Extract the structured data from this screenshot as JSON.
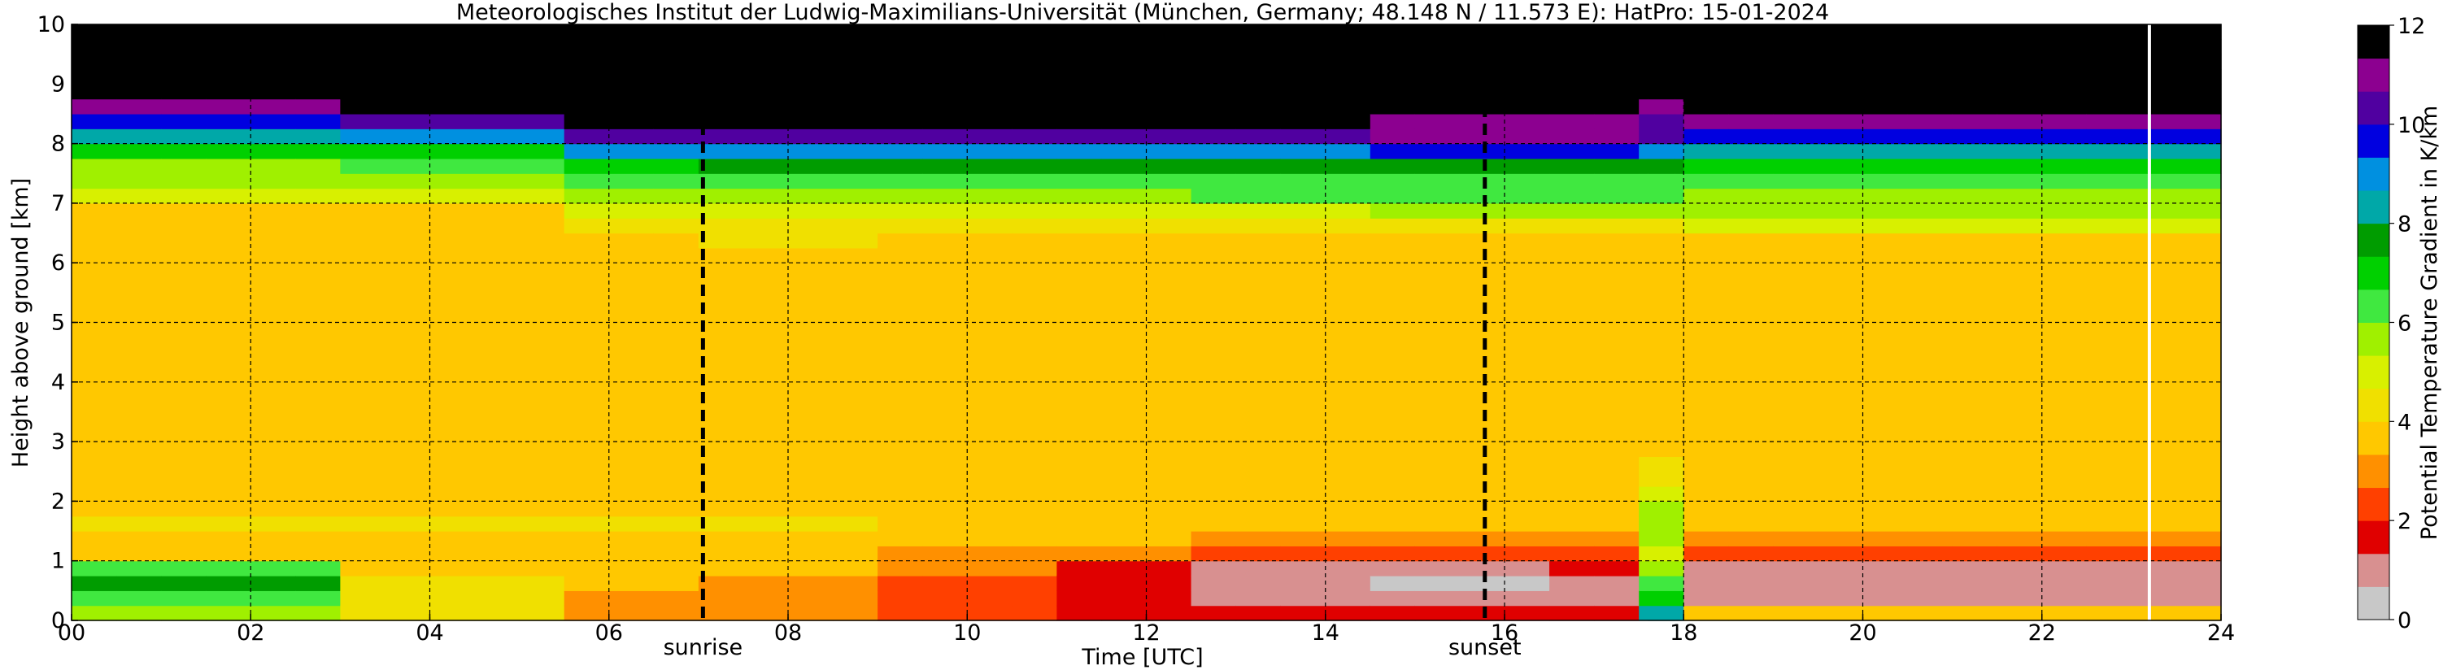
{
  "chart_data": {
    "type": "heatmap",
    "title": "Meteorologisches Institut der Ludwig-Maximilians-Universität (München, Germany; 48.148 N / 11.573 E):    HatPro: 15-01-2024",
    "xlabel": "Time [UTC]",
    "ylabel": "Height above ground [km]",
    "colorbar_label": "Potential Temperature Gradient in K/km",
    "xlim": [
      0,
      24
    ],
    "ylim": [
      0,
      10
    ],
    "clim": [
      0,
      12
    ],
    "x_ticks": [
      0,
      2,
      4,
      6,
      8,
      10,
      12,
      14,
      16,
      18,
      20,
      22,
      24
    ],
    "x_tick_labels": [
      "00",
      "02",
      "04",
      "06",
      "08",
      "10",
      "12",
      "14",
      "16",
      "18",
      "20",
      "22",
      "24"
    ],
    "y_ticks": [
      0,
      1,
      2,
      3,
      4,
      5,
      6,
      7,
      8,
      9,
      10
    ],
    "y_tick_labels": [
      "0",
      "1",
      "2",
      "3",
      "4",
      "5",
      "6",
      "7",
      "8",
      "9",
      "10"
    ],
    "colorbar_ticks": [
      0,
      2,
      4,
      6,
      8,
      10,
      12
    ],
    "colorbar_tick_labels": [
      "0",
      "2",
      "4",
      "6",
      "8",
      "10",
      "12"
    ],
    "colormap": [
      "#c8c8c8",
      "#d89090",
      "#e00000",
      "#ff4000",
      "#ff9000",
      "#ffc800",
      "#f0e000",
      "#d8f000",
      "#a0f000",
      "#40e840",
      "#00d000",
      "#009c00",
      "#00a8a8",
      "#0090e0",
      "#0000e0",
      "#5000a0",
      "#8c0090",
      "#000000"
    ],
    "grid": true,
    "markers": [
      {
        "time": 7.05,
        "label": "sunrise"
      },
      {
        "time": 15.78,
        "label": "sunset"
      }
    ],
    "data_end_line": 23.2,
    "x": [
      0,
      0.5,
      1,
      1.5,
      2,
      2.5,
      3,
      3.5,
      4,
      4.5,
      5,
      5.5,
      6,
      6.5,
      7,
      7.5,
      8,
      8.5,
      9,
      9.5,
      10,
      10.5,
      11,
      11.5,
      12,
      12.5,
      13,
      13.5,
      14,
      14.5,
      15,
      15.5,
      16,
      16.5,
      17,
      17.5,
      18,
      18.5,
      19,
      19.5,
      20,
      20.5,
      21,
      21.5,
      22,
      22.5,
      23,
      23.5
    ],
    "y": [
      0.125,
      0.375,
      0.625,
      0.875,
      1.125,
      1.375,
      1.625,
      1.875,
      2.125,
      2.375,
      2.625,
      2.875,
      3.125,
      3.375,
      3.625,
      3.875,
      4.125,
      4.375,
      4.625,
      4.875,
      5.125,
      5.375,
      5.625,
      5.875,
      6.125,
      6.375,
      6.625,
      6.875,
      7.125,
      7.375,
      7.625,
      7.875,
      8.125,
      8.375,
      8.625,
      8.875,
      9.125,
      9.375,
      9.625,
      9.875
    ],
    "profiles": [
      {
        "from": 0,
        "to": 3,
        "values": [
          5.5,
          6.5,
          7.5,
          6.5,
          3.5,
          3.8,
          4.5,
          3.8,
          3.6,
          3.6,
          3.6,
          3.6,
          3.8,
          3.6,
          3.6,
          3.6,
          3.6,
          3.5,
          3.5,
          3.5,
          3.6,
          3.6,
          3.5,
          3.6,
          3.5,
          3.6,
          3.4,
          3.9,
          5.0,
          5.6,
          5.9,
          6.9,
          8.3,
          9.5,
          11.2,
          12,
          12,
          12,
          12,
          12
        ]
      },
      {
        "from": 3,
        "to": 5.5,
        "values": [
          4.2,
          4.5,
          4.2,
          3.8,
          3.6,
          3.9,
          4.5,
          3.8,
          3.6,
          3.6,
          3.6,
          3.6,
          3.8,
          3.6,
          3.6,
          3.6,
          3.6,
          3.5,
          3.5,
          3.5,
          3.6,
          3.6,
          3.5,
          3.6,
          3.5,
          3.5,
          3.4,
          3.8,
          5.0,
          5.7,
          6.2,
          7.2,
          8.8,
          10.0,
          11.5,
          12,
          12,
          12,
          12,
          12
        ]
      },
      {
        "from": 5.5,
        "to": 7,
        "values": [
          3.0,
          3.3,
          3.5,
          3.6,
          3.6,
          3.9,
          4.5,
          3.8,
          3.6,
          3.6,
          3.6,
          3.6,
          3.8,
          3.6,
          3.6,
          3.6,
          3.6,
          3.5,
          3.5,
          3.5,
          3.6,
          3.6,
          3.5,
          3.6,
          3.5,
          3.8,
          4.3,
          5.0,
          5.7,
          6.3,
          7.2,
          8.8,
          10.2,
          11.5,
          12,
          12,
          12,
          12,
          12,
          12
        ]
      },
      {
        "from": 7,
        "to": 9,
        "values": [
          2.8,
          3.0,
          3.2,
          3.4,
          3.5,
          3.8,
          4.4,
          3.8,
          3.6,
          3.6,
          3.6,
          3.6,
          3.8,
          3.6,
          3.6,
          3.6,
          3.6,
          3.5,
          3.5,
          3.5,
          3.6,
          3.6,
          3.5,
          3.6,
          3.5,
          4.0,
          4.5,
          5.2,
          5.9,
          6.4,
          7.5,
          9.0,
          10.5,
          11.6,
          12,
          12,
          12,
          12,
          12,
          12
        ]
      },
      {
        "from": 9,
        "to": 11,
        "values": [
          2.2,
          2.4,
          2.6,
          2.9,
          3.3,
          3.5,
          3.9,
          3.7,
          3.6,
          3.6,
          3.6,
          3.6,
          3.8,
          3.6,
          3.6,
          3.6,
          3.6,
          3.5,
          3.5,
          3.5,
          3.6,
          3.6,
          3.5,
          3.6,
          3.5,
          3.9,
          4.4,
          5.1,
          5.8,
          6.4,
          7.4,
          8.9,
          10.5,
          11.6,
          12,
          12,
          12,
          12,
          12,
          12
        ]
      },
      {
        "from": 11,
        "to": 12.5,
        "values": [
          1.9,
          1.6,
          1.4,
          1.6,
          2.9,
          3.4,
          3.8,
          3.7,
          3.6,
          3.6,
          3.6,
          3.6,
          3.8,
          3.6,
          3.6,
          3.6,
          3.6,
          3.5,
          3.5,
          3.5,
          3.6,
          3.6,
          3.5,
          3.6,
          3.5,
          3.9,
          4.4,
          5.1,
          5.8,
          6.4,
          7.4,
          8.9,
          10.5,
          11.6,
          12,
          12,
          12,
          12,
          12,
          12
        ]
      },
      {
        "from": 12.5,
        "to": 14.5,
        "values": [
          1.5,
          1.2,
          0.9,
          1.3,
          2.6,
          3.3,
          3.7,
          3.7,
          3.6,
          3.6,
          3.6,
          3.6,
          3.8,
          3.6,
          3.6,
          3.6,
          3.6,
          3.5,
          3.5,
          3.5,
          3.6,
          3.6,
          3.5,
          3.6,
          3.5,
          3.9,
          4.5,
          5.3,
          6.0,
          6.6,
          7.6,
          9.2,
          10.6,
          11.6,
          12,
          12,
          12,
          12,
          12,
          12
        ]
      },
      {
        "from": 14.5,
        "to": 16.5,
        "values": [
          1.5,
          1.1,
          0.5,
          1.2,
          2.4,
          3.2,
          3.7,
          3.7,
          3.6,
          3.6,
          3.6,
          3.6,
          3.8,
          3.6,
          3.6,
          3.6,
          3.6,
          3.5,
          3.5,
          3.5,
          3.6,
          3.6,
          3.5,
          3.6,
          3.5,
          3.9,
          4.5,
          5.5,
          6.0,
          6.3,
          7.6,
          9.6,
          10.8,
          11.2,
          12,
          12,
          12,
          12,
          12,
          12
        ]
      },
      {
        "from": 16.5,
        "to": 17.6,
        "values": [
          1.6,
          1.3,
          1.0,
          1.4,
          2.6,
          3.3,
          3.7,
          3.7,
          3.6,
          3.6,
          3.6,
          3.6,
          3.8,
          3.6,
          3.6,
          3.6,
          3.6,
          3.5,
          3.5,
          3.5,
          3.6,
          3.6,
          3.5,
          3.6,
          3.5,
          3.9,
          4.6,
          5.6,
          6.1,
          6.5,
          7.6,
          9.6,
          10.8,
          11.3,
          12,
          12,
          12,
          12,
          12,
          12
        ]
      },
      {
        "from": 17.6,
        "to": 17.9,
        "values": [
          8.0,
          7.0,
          6.0,
          5.5,
          5.0,
          5.5,
          5.8,
          5.6,
          5.2,
          4.6,
          4.0,
          3.8,
          3.8,
          3.6,
          3.6,
          3.6,
          3.6,
          3.5,
          3.5,
          3.5,
          3.6,
          3.6,
          3.5,
          3.6,
          3.5,
          3.9,
          4.6,
          5.6,
          6.1,
          6.5,
          7.6,
          9.0,
          10.2,
          10.5,
          11.2,
          11.5,
          12,
          12,
          12,
          12
        ]
      },
      {
        "from": 17.9,
        "to": 23.2,
        "values": [
          3.5,
          1.2,
          1.1,
          1.3,
          2.4,
          3.3,
          3.7,
          3.7,
          3.6,
          3.6,
          3.6,
          3.6,
          3.8,
          3.6,
          3.6,
          3.6,
          3.6,
          3.5,
          3.5,
          3.5,
          3.6,
          3.6,
          3.5,
          3.6,
          3.5,
          3.9,
          4.8,
          5.4,
          5.9,
          6.3,
          7.2,
          8.0,
          9.6,
          10.8,
          12,
          12,
          12,
          12,
          12,
          12
        ]
      },
      {
        "from": 23.2,
        "to": 24,
        "values": [
          3.5,
          1.2,
          1.1,
          1.3,
          2.4,
          3.3,
          3.7,
          3.7,
          3.6,
          3.6,
          3.6,
          3.6,
          3.8,
          3.6,
          3.6,
          3.6,
          3.6,
          3.5,
          3.5,
          3.5,
          3.6,
          3.6,
          3.5,
          3.6,
          3.5,
          3.9,
          4.8,
          5.4,
          5.9,
          6.3,
          7.2,
          8.0,
          9.6,
          10.8,
          12,
          12,
          12,
          12,
          12,
          12
        ]
      }
    ]
  }
}
